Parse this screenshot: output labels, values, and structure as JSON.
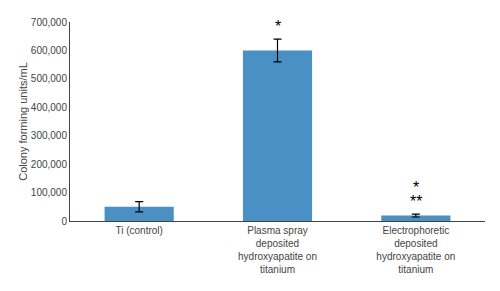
{
  "chart_data": {
    "type": "bar",
    "categories": [
      "Ti (control)",
      "Plasma spray\ndeposited\nhydroxyapatite on\ntitanium",
      "Electrophoretic\ndeposited\nhydroxyapatite on\ntitanium"
    ],
    "values": [
      50000,
      600000,
      19000
    ],
    "errors": [
      18000,
      40000,
      5000
    ],
    "color": "#4a90c4",
    "ylabel": "Colony forming units/mL",
    "ylim": [
      0,
      700000
    ],
    "yticks": [
      0,
      {
        "value": 100000,
        "label": "100,000"
      },
      {
        "value": 200000,
        "label": "200,000"
      },
      {
        "value": 300000,
        "label": "300,000"
      },
      {
        "value": 400000,
        "label": "400,000"
      },
      {
        "value": 500000,
        "label": "500,000"
      },
      {
        "value": 600000,
        "label": "600,000"
      },
      {
        "value": 700000,
        "label": "700,000"
      }
    ],
    "annotations": [
      {
        "text": "*",
        "category": "Plasma spray\ndeposited\nhydroxyapatite on\ntitanium"
      },
      {
        "text": "**",
        "category": "Electrophoretic\ndeposited\nhydroxyapatite on\ntitanium"
      },
      {
        "text": "*",
        "category": "Electrophoretic\ndeposited\nhydroxyapatite on\ntitanium"
      }
    ],
    "grid": false
  }
}
